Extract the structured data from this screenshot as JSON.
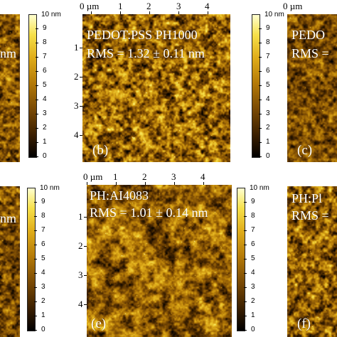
{
  "colorbar": {
    "unit": "nm",
    "max_label": "10 nm",
    "labels": [
      "9",
      "8",
      "7",
      "6",
      "5",
      "4",
      "3",
      "2",
      "1",
      "0"
    ],
    "gradient": [
      "#000000",
      "#3c2000",
      "#7a4a04",
      "#b47a08",
      "#e0ad1a",
      "#f6e04a",
      "#ffffd0"
    ]
  },
  "x_axis_labels": [
    "0 µm",
    "1",
    "2",
    "3",
    "4"
  ],
  "y_axis_labels": [
    "1",
    "2",
    "3",
    "4"
  ],
  "panels": {
    "a": {
      "title": "",
      "rms": "nm",
      "letter": ""
    },
    "b": {
      "title": "PEDOT:PSS PH1000",
      "rms": "RMS = 1.32 ± 0.11 nm",
      "letter": "(b)"
    },
    "c": {
      "title": "PEDO",
      "rms": "RMS =",
      "letter": "(c)"
    },
    "d": {
      "title": "",
      "rms": "nm",
      "letter": ""
    },
    "e": {
      "title": "PH:AI4083",
      "rms": "RMS = 1.01 ± 0.14 nm",
      "letter": "(e)"
    },
    "f": {
      "title": "PH:Pl",
      "rms": "RMS =",
      "letter": "(f)"
    }
  }
}
